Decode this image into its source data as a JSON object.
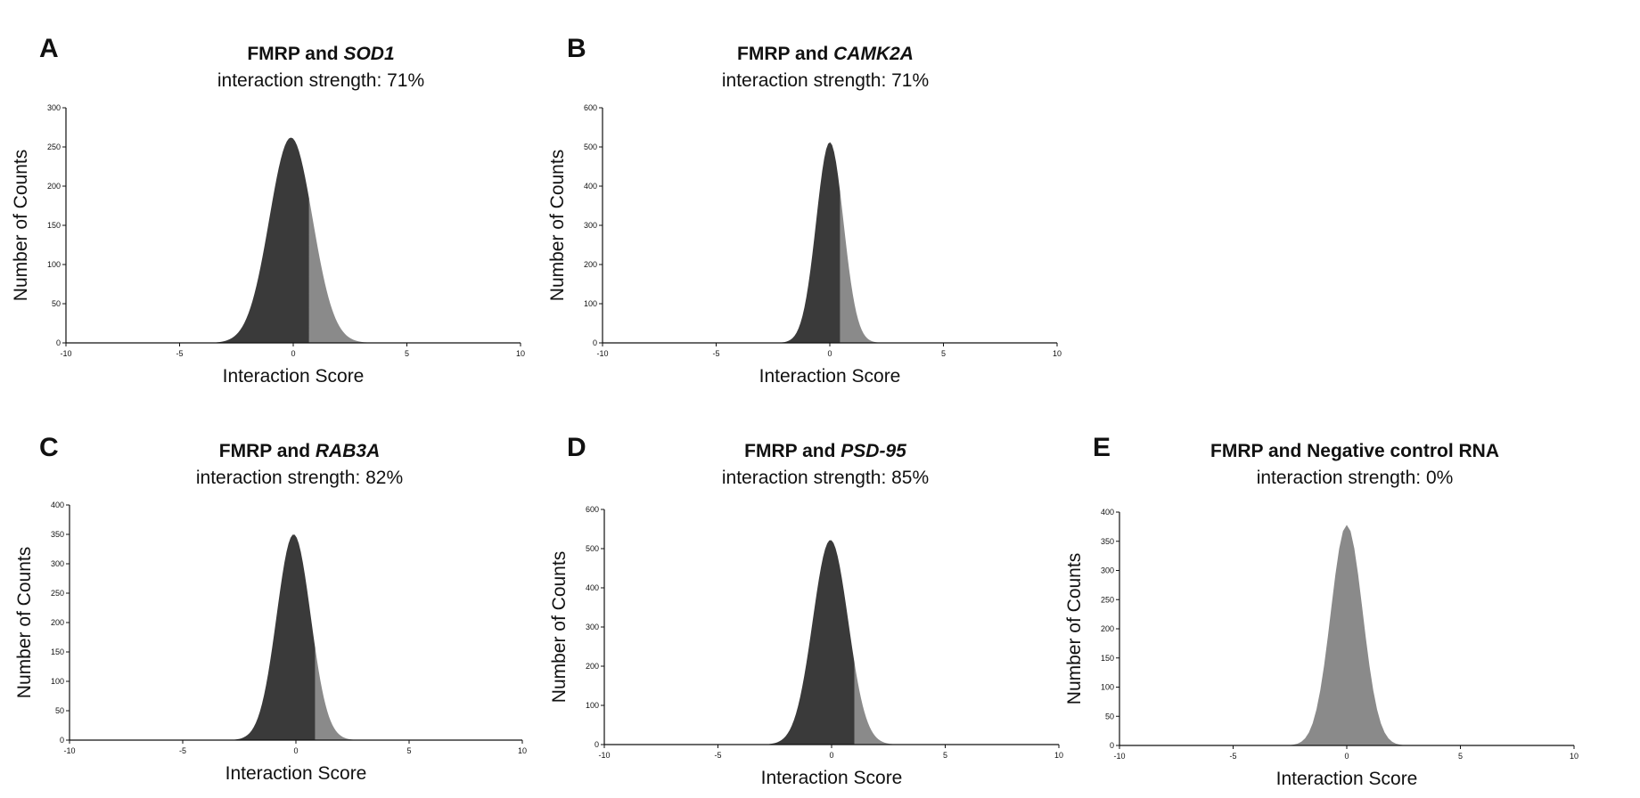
{
  "chart_data": [
    {
      "panel": "A",
      "type": "area",
      "title_prefix": "FMRP and ",
      "gene": "SOD1",
      "subtitle": "interaction strength: 71%",
      "xlabel": "Interaction Score",
      "ylabel": "Number of Counts",
      "xlim": [
        -10,
        10
      ],
      "ylim": [
        0,
        300
      ],
      "xticks": [
        -10,
        -5,
        0,
        5,
        10
      ],
      "yticks": [
        0,
        50,
        100,
        150,
        200,
        250,
        300
      ],
      "distribution": {
        "mean": -0.1,
        "sd": 0.95,
        "peak": 262
      },
      "threshold": 0.7,
      "colors": {
        "below": "#3a3a3a",
        "above": "#8a8a8a"
      }
    },
    {
      "panel": "B",
      "type": "area",
      "title_prefix": "FMRP and ",
      "gene": "CAMK2A",
      "subtitle": "interaction strength: 71%",
      "xlabel": "Interaction Score",
      "ylabel": "Number of Counts",
      "xlim": [
        -10,
        10
      ],
      "ylim": [
        0,
        600
      ],
      "xticks": [
        -10,
        -5,
        0,
        5,
        10
      ],
      "yticks": [
        0,
        100,
        200,
        300,
        400,
        500,
        600
      ],
      "distribution": {
        "mean": 0.0,
        "sd": 0.6,
        "peak": 512
      },
      "threshold": 0.45,
      "colors": {
        "below": "#3a3a3a",
        "above": "#8a8a8a"
      }
    },
    {
      "panel": "C",
      "type": "area",
      "title_prefix": "FMRP and ",
      "gene": "RAB3A",
      "subtitle": "interaction strength: 82%",
      "xlabel": "Interaction Score",
      "ylabel": "Number of Counts",
      "xlim": [
        -10,
        10
      ],
      "ylim": [
        0,
        400
      ],
      "xticks": [
        -10,
        -5,
        0,
        5,
        10
      ],
      "yticks": [
        0,
        50,
        100,
        150,
        200,
        250,
        300,
        350,
        400
      ],
      "distribution": {
        "mean": -0.1,
        "sd": 0.75,
        "peak": 350
      },
      "threshold": 0.85,
      "colors": {
        "below": "#3a3a3a",
        "above": "#8a8a8a"
      }
    },
    {
      "panel": "D",
      "type": "area",
      "title_prefix": "FMRP and ",
      "gene": "PSD-95",
      "subtitle": "interaction strength: 85%",
      "xlabel": "Interaction Score",
      "ylabel": "Number of Counts",
      "xlim": [
        -10,
        10
      ],
      "ylim": [
        0,
        600
      ],
      "xticks": [
        -10,
        -5,
        0,
        5,
        10
      ],
      "yticks": [
        0,
        100,
        200,
        300,
        400,
        500,
        600
      ],
      "distribution": {
        "mean": -0.05,
        "sd": 0.78,
        "peak": 522
      },
      "threshold": 1.0,
      "colors": {
        "below": "#3a3a3a",
        "above": "#8a8a8a"
      }
    },
    {
      "panel": "E",
      "type": "area",
      "title_prefix": "FMRP and Negative control RNA",
      "gene": "",
      "subtitle": "interaction strength: 0%",
      "xlabel": "Interaction Score",
      "ylabel": "Number of Counts",
      "xlim": [
        -10,
        10
      ],
      "ylim": [
        0,
        400
      ],
      "xticks": [
        -10,
        -5,
        0,
        5,
        10
      ],
      "yticks": [
        0,
        50,
        100,
        150,
        200,
        250,
        300,
        350,
        400
      ],
      "distribution": {
        "mean": 0.0,
        "sd": 0.7,
        "peak": 378
      },
      "threshold": -10,
      "colors": {
        "below": "#3a3a3a",
        "above": "#8a8a8a"
      }
    }
  ]
}
